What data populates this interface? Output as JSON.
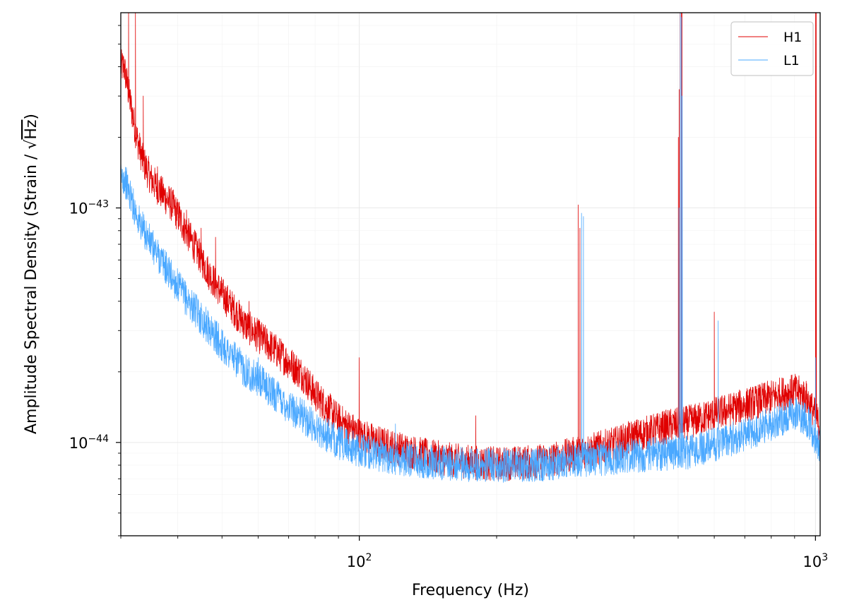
{
  "chart_data": {
    "type": "line",
    "title": "",
    "xlabel": "Frequency (Hz)",
    "ylabel_main": "Amplitude Spectral Density (Strain / √",
    "ylabel_sqrt": "Hz",
    "ylabel_close": ")",
    "xscale": "log",
    "yscale": "log",
    "xlim": [
      30,
      1024
    ],
    "ylim": [
      4e-45,
      6.8e-43
    ],
    "xticks": [
      {
        "value": 100,
        "mant": "10",
        "exp": "2"
      },
      {
        "value": 1000,
        "mant": "10",
        "exp": "3"
      }
    ],
    "yticks": [
      {
        "value": 1e-44,
        "mant": "10",
        "exp": "−44"
      },
      {
        "value": 1e-43,
        "mant": "10",
        "exp": "−43"
      }
    ],
    "grid": true,
    "legend_position": "top-right",
    "series": [
      {
        "name": "H1",
        "color": "#e00000",
        "x": [
          30.5,
          31.5,
          32.5,
          33.5,
          35,
          37,
          39,
          41,
          44,
          47,
          50,
          53,
          56,
          60,
          65,
          70,
          75,
          80,
          90,
          100,
          110,
          120,
          140,
          160,
          180,
          200,
          230,
          260,
          280,
          300,
          330,
          360,
          400,
          440,
          480,
          510,
          560,
          600,
          650,
          700,
          750,
          800,
          850,
          900,
          950,
          1000,
          1020
        ],
        "y": [
          4e-43,
          2.8e-43,
          2e-43,
          1.6e-43,
          1.32e-43,
          1.15e-43,
          1.02e-43,
          8.5e-44,
          6.6e-44,
          5.2e-44,
          4.3e-44,
          3.7e-44,
          3.2e-44,
          2.85e-44,
          2.5e-44,
          2.2e-44,
          1.95e-44,
          1.6e-44,
          1.25e-44,
          1.08e-44,
          1e-44,
          9.5e-45,
          8.8e-45,
          8.4e-45,
          8.2e-45,
          8.1e-45,
          8.2e-45,
          8.4e-45,
          8.7e-45,
          9e-45,
          9.4e-45,
          9.8e-45,
          1.06e-44,
          1.12e-44,
          1.18e-44,
          1.2e-44,
          1.26e-44,
          1.32e-44,
          1.38e-44,
          1.44e-44,
          1.5e-44,
          1.56e-44,
          1.62e-44,
          1.66e-44,
          1.58e-44,
          1.3e-44,
          1.18e-44
        ],
        "spikes": [
          {
            "f": 31.2,
            "a": 6.8e-43
          },
          {
            "f": 32.3,
            "a": 6.8e-43
          },
          {
            "f": 33.6,
            "a": 3e-43
          },
          {
            "f": 36.1,
            "a": 1.5e-43
          },
          {
            "f": 38.4,
            "a": 1e-43
          },
          {
            "f": 40.3,
            "a": 1.06e-43
          },
          {
            "f": 41.8,
            "a": 9.8e-44
          },
          {
            "f": 45.0,
            "a": 8.2e-44
          },
          {
            "f": 48.4,
            "a": 7.5e-44
          },
          {
            "f": 55.5,
            "a": 3.6e-44
          },
          {
            "f": 57.3,
            "a": 4e-44
          },
          {
            "f": 60.0,
            "a": 3.3e-44
          },
          {
            "f": 99.9,
            "a": 2.3e-44
          },
          {
            "f": 180.0,
            "a": 1.3e-44
          },
          {
            "f": 302.0,
            "a": 1.03e-43
          },
          {
            "f": 304.5,
            "a": 8.2e-44
          },
          {
            "f": 500.5,
            "a": 2e-43
          },
          {
            "f": 502.5,
            "a": 3.2e-43
          },
          {
            "f": 505.0,
            "a": 6.8e-43
          },
          {
            "f": 508.0,
            "a": 6.8e-43
          },
          {
            "f": 510.0,
            "a": 6.8e-43
          },
          {
            "f": 600.0,
            "a": 3.6e-44
          },
          {
            "f": 1000.5,
            "a": 6.8e-43
          },
          {
            "f": 1004.0,
            "a": 6.8e-43
          }
        ]
      },
      {
        "name": "L1",
        "color": "#4aa8ff",
        "x": [
          30.5,
          31.5,
          33,
          35,
          37,
          39,
          41,
          44,
          47,
          50,
          53,
          56,
          60,
          65,
          70,
          75,
          80,
          90,
          100,
          110,
          120,
          140,
          160,
          180,
          200,
          230,
          260,
          280,
          300,
          330,
          360,
          400,
          440,
          480,
          505,
          520,
          560,
          600,
          650,
          700,
          750,
          800,
          850,
          900,
          950,
          1000,
          1020
        ],
        "y": [
          1.35e-43,
          1.12e-43,
          8.6e-44,
          7e-44,
          5.9e-44,
          5e-44,
          4.3e-44,
          3.6e-44,
          3.05e-44,
          2.6e-44,
          2.3e-44,
          2.05e-44,
          1.85e-44,
          1.62e-44,
          1.42e-44,
          1.3e-44,
          1.16e-44,
          1e-44,
          9.3e-45,
          8.9e-45,
          8.6e-45,
          8.3e-45,
          8.1e-45,
          8e-45,
          8e-45,
          8e-45,
          8.1e-45,
          8.3e-45,
          8.4e-45,
          8.5e-45,
          8.6e-45,
          8.8e-45,
          8.9e-45,
          9e-45,
          9.2e-45,
          9e-45,
          9.4e-45,
          9.8e-45,
          1.03e-44,
          1.08e-44,
          1.13e-44,
          1.2e-44,
          1.27e-44,
          1.33e-44,
          1.28e-44,
          1.05e-44,
          9.6e-45
        ],
        "spikes": [
          {
            "f": 60.0,
            "a": 2.3e-44
          },
          {
            "f": 120.0,
            "a": 1.2e-44
          },
          {
            "f": 307.0,
            "a": 9.5e-44
          },
          {
            "f": 310.0,
            "a": 9.2e-44
          },
          {
            "f": 502.0,
            "a": 1e-43
          },
          {
            "f": 505.5,
            "a": 6.8e-43
          },
          {
            "f": 508.5,
            "a": 6.5e-43
          },
          {
            "f": 510.5,
            "a": 3e-43
          },
          {
            "f": 612.0,
            "a": 3.3e-44
          },
          {
            "f": 1000.0,
            "a": 2.3e-44
          }
        ]
      }
    ]
  }
}
